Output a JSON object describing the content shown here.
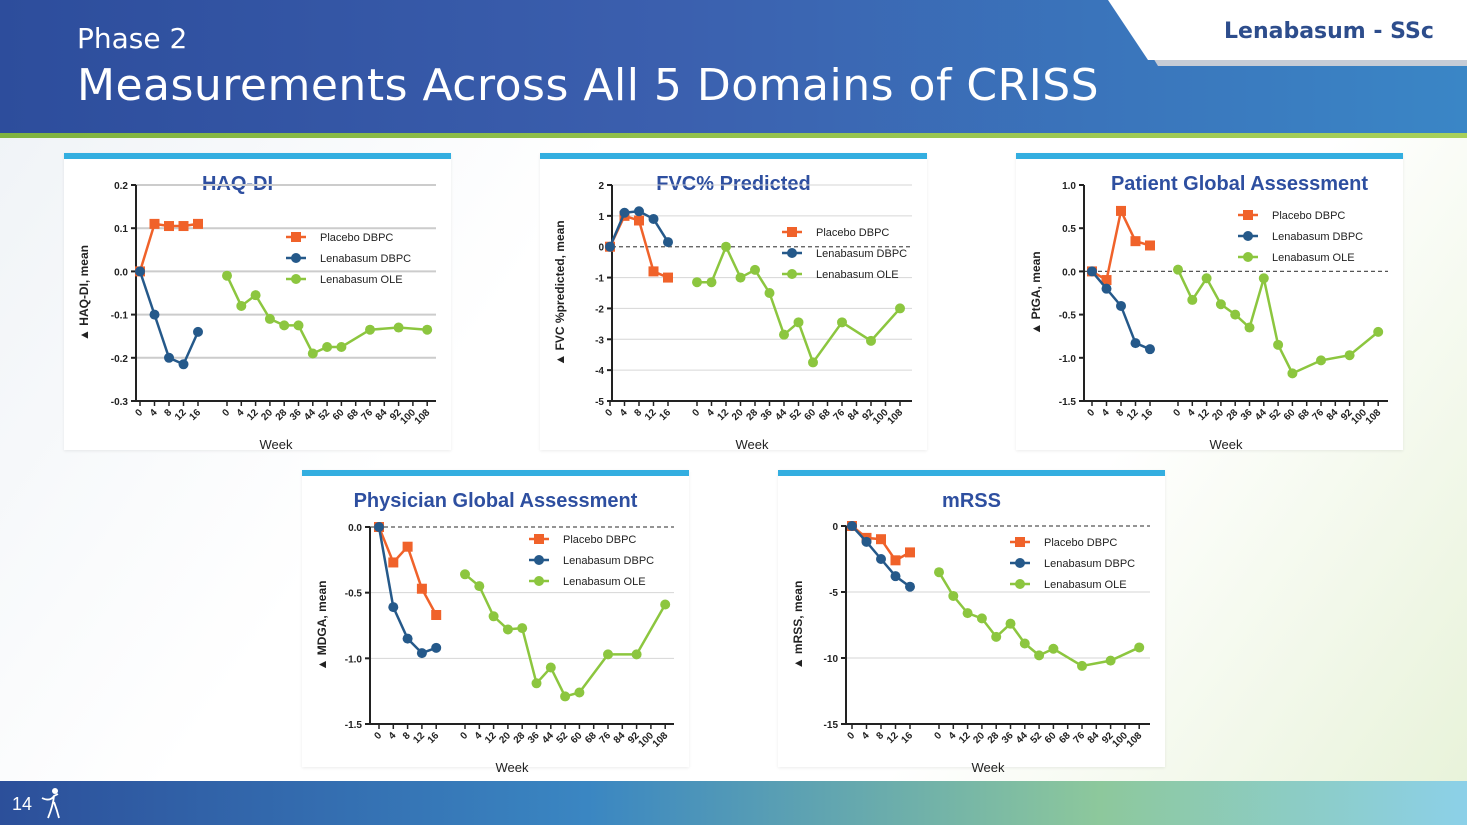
{
  "slide": {
    "subtitle": "Phase 2",
    "title": "Measurements Across All 5 Domains of CRISS",
    "tag": "Lenabasum - SSc",
    "page_number": "14"
  },
  "colors": {
    "placebo": "#f0622a",
    "lenabasum_dbpc": "#25598a",
    "lenabasum_ole": "#8cc63f",
    "panel_accent": "#33aee0",
    "title_blue": "#2e4fa0"
  },
  "chart_data": [
    {
      "type": "line",
      "title": "HAQ-DI",
      "ylabel": "▲ HAQ-DI, mean",
      "xlabel": "Week",
      "ylim": [
        -0.3,
        0.2
      ],
      "yticks": [
        0.2,
        0.1,
        0.0,
        -0.1,
        -0.2,
        -0.3
      ],
      "ytick_labels": [
        "0.2",
        "0.1",
        "0.0",
        "-0.1",
        "-0.2",
        "-0.3"
      ],
      "grid": "solid",
      "legend": "top-right",
      "dbpc_weeks": [
        "0",
        "4",
        "8",
        "12",
        "16"
      ],
      "ole_weeks": [
        "0",
        "4",
        "12",
        "20",
        "28",
        "36",
        "44",
        "52",
        "60",
        "68",
        "76",
        "84",
        "92",
        "100",
        "108"
      ],
      "series": [
        {
          "name": "Placebo DBPC",
          "segment": "dbpc",
          "marker": "square",
          "values": [
            0.0,
            0.11,
            0.105,
            0.105,
            0.11
          ]
        },
        {
          "name": "Lenabasum DBPC",
          "segment": "dbpc",
          "marker": "circle",
          "values": [
            0.0,
            -0.1,
            -0.2,
            -0.215,
            -0.14
          ]
        },
        {
          "name": "Lenabasum OLE",
          "segment": "ole",
          "marker": "circle",
          "values": [
            -0.01,
            -0.08,
            -0.055,
            -0.11,
            -0.125,
            -0.125,
            -0.19,
            -0.175,
            -0.175,
            null,
            -0.135,
            null,
            -0.13,
            null,
            -0.135
          ]
        }
      ]
    },
    {
      "type": "line",
      "title": "FVC% Predicted",
      "ylabel": "▲ FVC %predicted, mean",
      "xlabel": "Week",
      "ylim": [
        -5,
        2
      ],
      "yticks": [
        2,
        1,
        0,
        -1,
        -2,
        -3,
        -4,
        -5
      ],
      "ytick_labels": [
        "2",
        "1",
        "0",
        "-1",
        "-2",
        "-3",
        "-4",
        "-5"
      ],
      "grid": "light",
      "legend": "top-right",
      "dbpc_weeks": [
        "0",
        "4",
        "8",
        "12",
        "16"
      ],
      "ole_weeks": [
        "0",
        "4",
        "12",
        "20",
        "28",
        "36",
        "44",
        "52",
        "60",
        "68",
        "76",
        "84",
        "92",
        "100",
        "108"
      ],
      "series": [
        {
          "name": "Placebo DBPC",
          "segment": "dbpc",
          "marker": "square",
          "values": [
            0.0,
            1.0,
            0.85,
            -0.8,
            -1.0
          ]
        },
        {
          "name": "Lenabasum DBPC",
          "segment": "dbpc",
          "marker": "circle",
          "values": [
            0.0,
            1.1,
            1.15,
            0.9,
            0.15
          ]
        },
        {
          "name": "Lenabasum OLE",
          "segment": "ole",
          "marker": "circle",
          "values": [
            -1.15,
            -1.15,
            0.0,
            -1.0,
            -0.75,
            -1.5,
            -2.85,
            -2.45,
            -3.75,
            null,
            -2.45,
            null,
            -3.05,
            null,
            -2.0
          ]
        }
      ]
    },
    {
      "type": "line",
      "title": "Patient Global Assessment",
      "ylabel": "▲ PtGA, mean",
      "xlabel": "Week",
      "ylim": [
        -1.5,
        1.0
      ],
      "yticks": [
        1.0,
        0.5,
        0.0,
        -0.5,
        -1.0,
        -1.5
      ],
      "ytick_labels": [
        "1.0",
        "0.5",
        "0.0",
        "-0.5",
        "-1.0",
        "-1.5"
      ],
      "grid": "none",
      "legend": "top-right",
      "dbpc_weeks": [
        "0",
        "4",
        "8",
        "12",
        "16"
      ],
      "ole_weeks": [
        "0",
        "4",
        "12",
        "20",
        "28",
        "36",
        "44",
        "52",
        "60",
        "68",
        "76",
        "84",
        "92",
        "100",
        "108"
      ],
      "series": [
        {
          "name": "Placebo DBPC",
          "segment": "dbpc",
          "marker": "square",
          "values": [
            0.0,
            -0.1,
            0.7,
            0.35,
            0.3
          ]
        },
        {
          "name": "Lenabasum DBPC",
          "segment": "dbpc",
          "marker": "circle",
          "values": [
            0.0,
            -0.2,
            -0.4,
            -0.83,
            -0.9
          ]
        },
        {
          "name": "Lenabasum OLE",
          "segment": "ole",
          "marker": "circle",
          "values": [
            0.02,
            -0.33,
            -0.08,
            -0.38,
            -0.5,
            -0.65,
            -0.08,
            -0.85,
            -1.18,
            null,
            -1.03,
            null,
            -0.97,
            null,
            -0.7
          ]
        }
      ]
    },
    {
      "type": "line",
      "title": "Physician Global Assessment",
      "ylabel": "▲ MDGA, mean",
      "xlabel": "Week",
      "ylim": [
        -1.5,
        0.0
      ],
      "yticks": [
        0.0,
        -0.5,
        -1.0,
        -1.5
      ],
      "ytick_labels": [
        "0.0",
        "-0.5",
        "-1.0",
        "-1.5"
      ],
      "grid": "light",
      "legend": "top-right",
      "dbpc_weeks": [
        "0",
        "4",
        "8",
        "12",
        "16"
      ],
      "ole_weeks": [
        "0",
        "4",
        "12",
        "20",
        "28",
        "36",
        "44",
        "52",
        "60",
        "68",
        "76",
        "84",
        "92",
        "100",
        "108"
      ],
      "series": [
        {
          "name": "Placebo DBPC",
          "segment": "dbpc",
          "marker": "square",
          "values": [
            0.0,
            -0.27,
            -0.15,
            -0.47,
            -0.67
          ]
        },
        {
          "name": "Lenabasum DBPC",
          "segment": "dbpc",
          "marker": "circle",
          "values": [
            0.0,
            -0.61,
            -0.85,
            -0.96,
            -0.92
          ]
        },
        {
          "name": "Lenabasum OLE",
          "segment": "ole",
          "marker": "circle",
          "values": [
            -0.36,
            -0.45,
            -0.68,
            -0.78,
            -0.77,
            -1.19,
            -1.07,
            -1.29,
            -1.26,
            null,
            -0.97,
            null,
            -0.97,
            null,
            -0.59
          ]
        }
      ]
    },
    {
      "type": "line",
      "title": "mRSS",
      "ylabel": "▲ mRSS, mean",
      "xlabel": "Week",
      "ylim": [
        -15,
        0
      ],
      "yticks": [
        0,
        -5,
        -10,
        -15
      ],
      "ytick_labels": [
        "0",
        "-5",
        "-10",
        "-15"
      ],
      "grid": "light",
      "legend": "top-right",
      "dbpc_weeks": [
        "0",
        "4",
        "8",
        "12",
        "16"
      ],
      "ole_weeks": [
        "0",
        "4",
        "12",
        "20",
        "28",
        "36",
        "44",
        "52",
        "60",
        "68",
        "76",
        "84",
        "92",
        "100",
        "108"
      ],
      "series": [
        {
          "name": "Placebo DBPC",
          "segment": "dbpc",
          "marker": "square",
          "values": [
            0.0,
            -0.9,
            -1.0,
            -2.6,
            -2.0
          ]
        },
        {
          "name": "Lenabasum DBPC",
          "segment": "dbpc",
          "marker": "circle",
          "values": [
            0.0,
            -1.2,
            -2.5,
            -3.8,
            -4.6
          ]
        },
        {
          "name": "Lenabasum OLE",
          "segment": "ole",
          "marker": "circle",
          "values": [
            -3.5,
            -5.3,
            -6.6,
            -7.0,
            -8.4,
            -7.4,
            -8.9,
            -9.8,
            -9.3,
            null,
            -10.6,
            null,
            -10.2,
            null,
            -9.2
          ]
        }
      ]
    }
  ]
}
